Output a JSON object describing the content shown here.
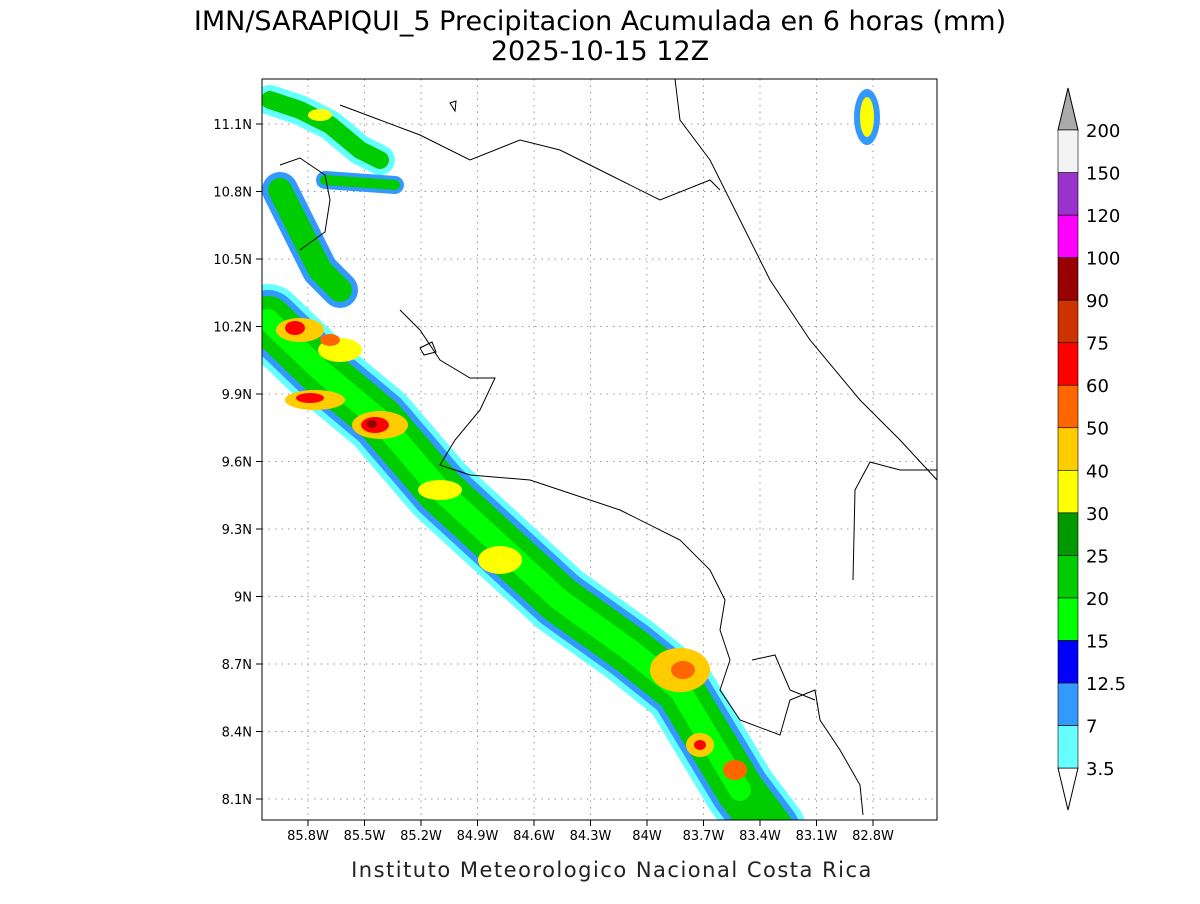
{
  "title": "IMN/SARAPIQUI_5 Precipitacion Acumulada en 6 horas (mm)",
  "subtitle": "2025-10-15 12Z",
  "footer": "Instituto Meteorologico Nacional Costa Rica",
  "lat_labels": [
    "11.1N",
    "10.8N",
    "10.5N",
    "10.2N",
    "9.9N",
    "9.6N",
    "9.3N",
    "9N",
    "8.7N",
    "8.4N",
    "8.1N"
  ],
  "lon_labels": [
    "85.8W",
    "85.5W",
    "85.2W",
    "84.9W",
    "84.6W",
    "84.3W",
    "84W",
    "83.7W",
    "83.4W",
    "83.1W",
    "82.8W"
  ],
  "colorbar": {
    "labels": [
      "3.5",
      "7",
      "12.5",
      "15",
      "20",
      "25",
      "30",
      "40",
      "50",
      "60",
      "75",
      "90",
      "100",
      "120",
      "150",
      "200"
    ],
    "colors": [
      "#66ffff",
      "#3399ff",
      "#0000ff",
      "#00ff00",
      "#00cc00",
      "#009900",
      "#ffff00",
      "#ffcc00",
      "#ff6600",
      "#ff0000",
      "#cc3300",
      "#990000",
      "#ff00ff",
      "#9933cc",
      "#f4f4f4"
    ]
  }
}
